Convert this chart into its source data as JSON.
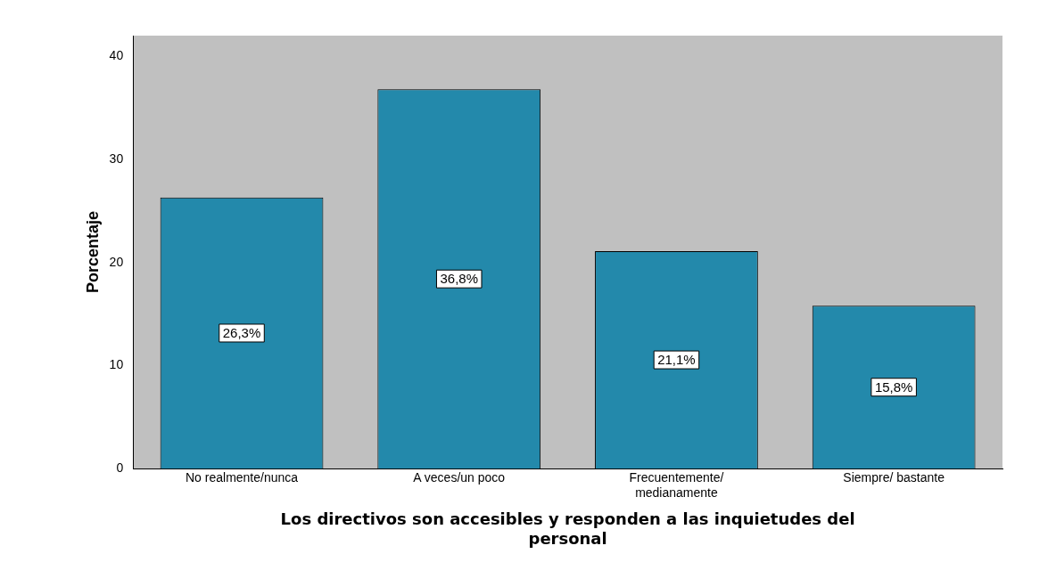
{
  "chart_data": {
    "type": "bar",
    "xlabel": "Los directivos son accesibles y responden a las inquietudes del personal",
    "ylabel": "Porcentaje",
    "categories": [
      "No realmente/nunca",
      "A veces/un poco",
      "Frecuentemente/ medianamente",
      "Siempre/ bastante"
    ],
    "values": [
      26.3,
      36.8,
      21.1,
      15.8
    ],
    "value_labels": [
      "26,3%",
      "36,8%",
      "21,1%",
      "15,8%"
    ],
    "color": "#2389ab",
    "ylim": [
      0,
      42
    ],
    "yticks": [
      0,
      10,
      20,
      30,
      40
    ],
    "grid": false,
    "legend": false
  }
}
